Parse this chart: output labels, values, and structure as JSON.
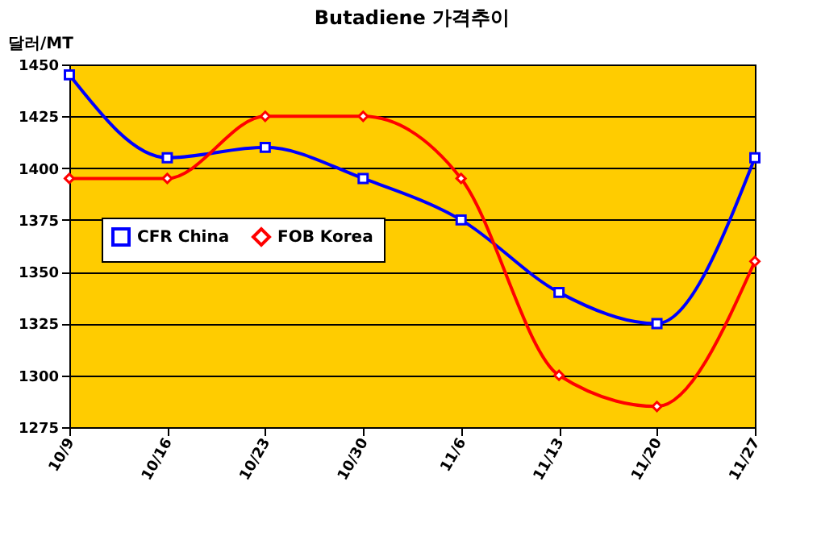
{
  "chart_data": {
    "type": "line",
    "title": "Butadiene 가격추이",
    "ylabel": "달러/MT",
    "categories": [
      "10/9",
      "10/16",
      "10/23",
      "10/30",
      "11/6",
      "11/13",
      "11/20",
      "11/27"
    ],
    "series": [
      {
        "name": "CFR China",
        "color": "#0000ff",
        "marker": "square",
        "values": [
          1445,
          1405,
          1410,
          1395,
          1375,
          1340,
          1325,
          1405
        ]
      },
      {
        "name": "FOB Korea",
        "color": "#ff0000",
        "marker": "diamond",
        "values": [
          1395,
          1395,
          1425,
          1425,
          1395,
          1300,
          1285,
          1355
        ]
      }
    ],
    "ylim": [
      1275,
      1450
    ],
    "yticks": [
      1275,
      1300,
      1325,
      1350,
      1375,
      1400,
      1425,
      1450
    ],
    "grid": "y",
    "legend": "left",
    "line_style": "solid"
  }
}
